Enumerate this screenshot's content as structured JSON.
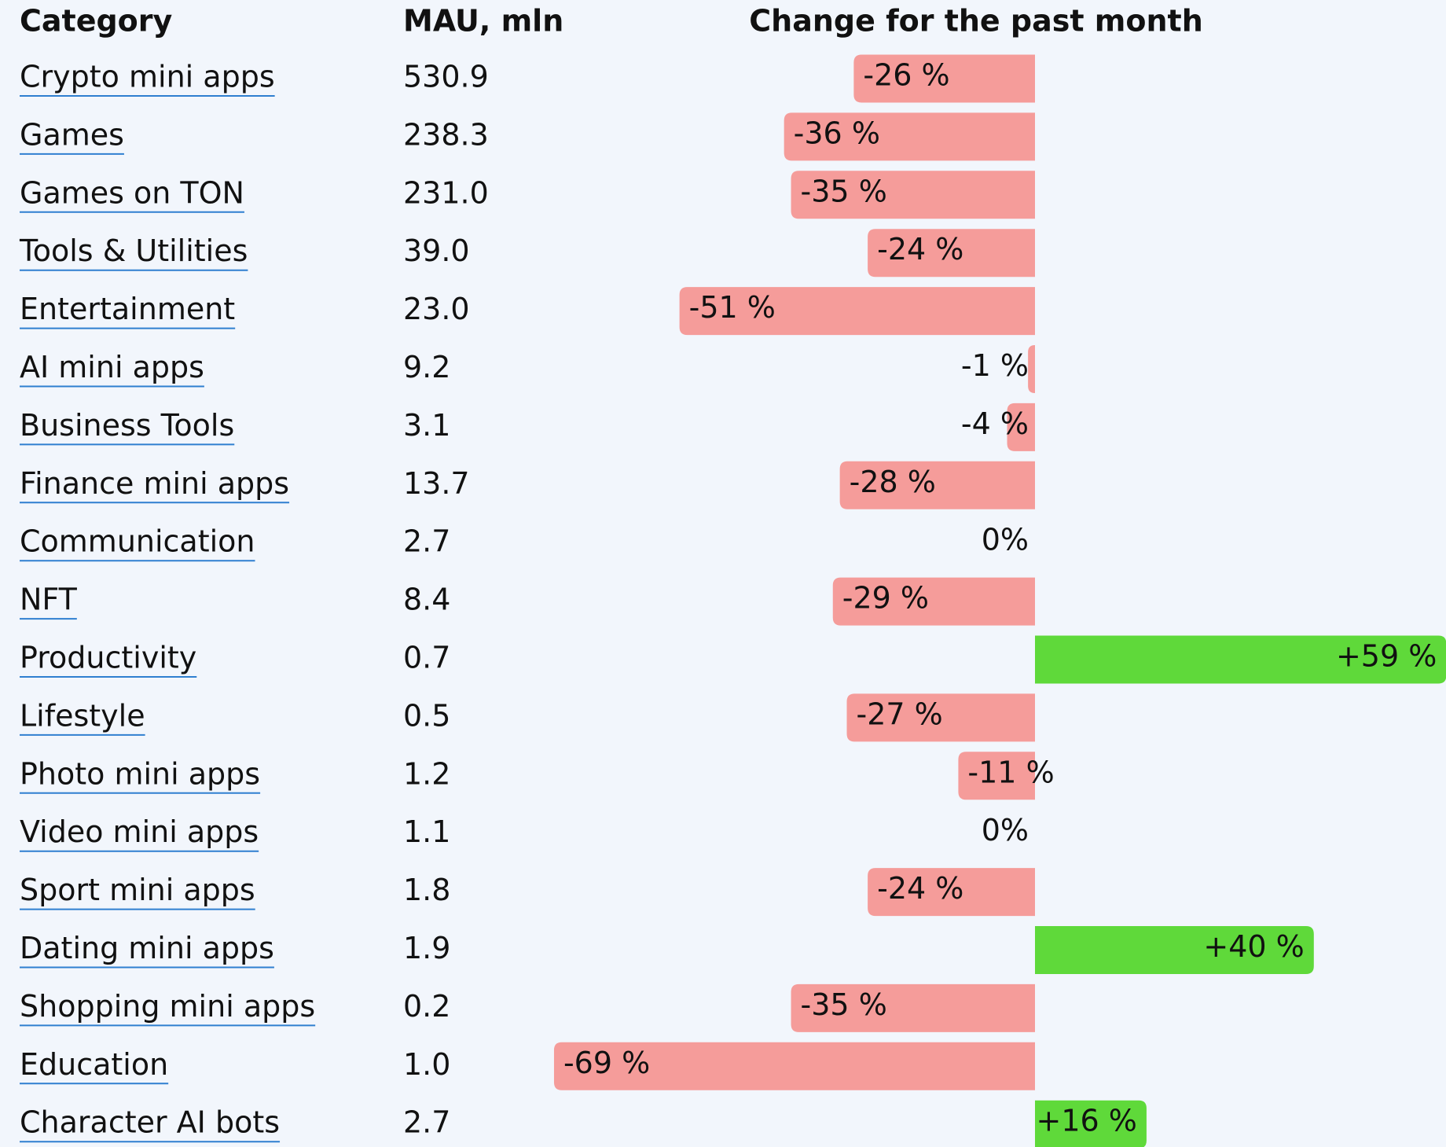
{
  "table": {
    "headers": [
      "Category",
      "MAU, mln",
      "Change for the past month"
    ],
    "negative_color": "#f59c9a",
    "positive_color": "#5fd93a",
    "rows": [
      {
        "category": "Crypto mini apps",
        "mau": "530.9",
        "change": -26,
        "change_label": "-26 %"
      },
      {
        "category": "Games",
        "mau": "238.3",
        "change": -36,
        "change_label": "-36 %"
      },
      {
        "category": "Games on TON",
        "mau": "231.0",
        "change": -35,
        "change_label": "-35 %"
      },
      {
        "category": "Tools & Utilities",
        "mau": "39.0",
        "change": -24,
        "change_label": "-24 %"
      },
      {
        "category": "Entertainment",
        "mau": "23.0",
        "change": -51,
        "change_label": "-51 %"
      },
      {
        "category": "AI mini apps",
        "mau": "9.2",
        "change": -1,
        "change_label": "-1 %"
      },
      {
        "category": "Business Tools",
        "mau": "3.1",
        "change": -4,
        "change_label": "-4 %"
      },
      {
        "category": "Finance mini apps",
        "mau": "13.7",
        "change": -28,
        "change_label": "-28 %"
      },
      {
        "category": "Communication",
        "mau": "2.7",
        "change": 0,
        "change_label": "0%"
      },
      {
        "category": "NFT",
        "mau": "8.4",
        "change": -29,
        "change_label": "-29 %"
      },
      {
        "category": "Productivity",
        "mau": "0.7",
        "change": 59,
        "change_label": "+59 %"
      },
      {
        "category": "Lifestyle",
        "mau": "0.5",
        "change": -27,
        "change_label": "-27 %"
      },
      {
        "category": "Photo mini apps",
        "mau": "1.2",
        "change": -11,
        "change_label": "-11 %"
      },
      {
        "category": "Video mini apps",
        "mau": "1.1",
        "change": 0,
        "change_label": "0%"
      },
      {
        "category": "Sport mini apps",
        "mau": "1.8",
        "change": -24,
        "change_label": "-24 %"
      },
      {
        "category": "Dating mini apps",
        "mau": "1.9",
        "change": 40,
        "change_label": "+40 %"
      },
      {
        "category": "Shopping mini apps",
        "mau": "0.2",
        "change": -35,
        "change_label": "-35 %"
      },
      {
        "category": "Education",
        "mau": "1.0",
        "change": -69,
        "change_label": "-69 %"
      },
      {
        "category": "Character AI bots",
        "mau": "2.7",
        "change": 16,
        "change_label": "+16 %"
      }
    ]
  }
}
